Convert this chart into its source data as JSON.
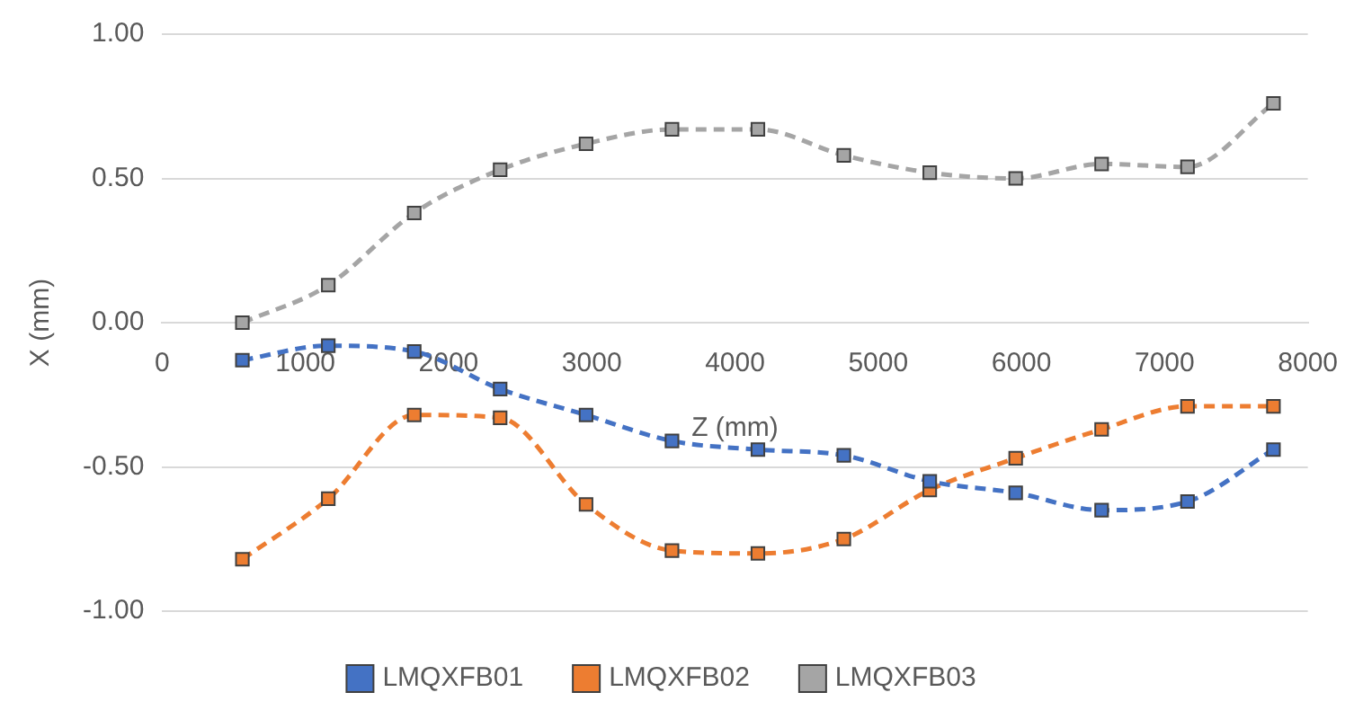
{
  "chart_data": {
    "type": "line",
    "xlabel": "Z (mm)",
    "ylabel": "X (mm)",
    "x": [
      560,
      1160,
      1760,
      2360,
      2960,
      3560,
      4160,
      4760,
      5360,
      5960,
      6560,
      7160,
      7760
    ],
    "series": [
      {
        "name": "LMQXFB01",
        "color": "#4472c4",
        "values": [
          -0.13,
          -0.08,
          -0.1,
          -0.23,
          -0.32,
          -0.41,
          -0.44,
          -0.46,
          -0.55,
          -0.59,
          -0.65,
          -0.62,
          -0.44
        ]
      },
      {
        "name": "LMQXFB02",
        "color": "#ed7d31",
        "values": [
          -0.82,
          -0.61,
          -0.32,
          -0.33,
          -0.63,
          -0.79,
          -0.8,
          -0.75,
          -0.58,
          -0.47,
          -0.37,
          -0.29,
          -0.29
        ]
      },
      {
        "name": "LMQXFB03",
        "color": "#a5a5a5",
        "values": [
          0.0,
          0.13,
          0.38,
          0.53,
          0.62,
          0.67,
          0.67,
          0.58,
          0.52,
          0.5,
          0.55,
          0.54,
          0.76
        ]
      }
    ],
    "xlim": [
      0,
      8000
    ],
    "xticks": [
      0,
      1000,
      2000,
      3000,
      4000,
      5000,
      6000,
      7000,
      8000
    ],
    "ylim": [
      -1,
      1
    ],
    "yticks": [
      {
        "value": -1,
        "label": "-1.00"
      },
      {
        "value": -0.5,
        "label": "-0.50"
      },
      {
        "value": 0,
        "label": "0.00"
      },
      {
        "value": 0.5,
        "label": "0.50"
      },
      {
        "value": 1,
        "label": "1.00"
      }
    ],
    "grid": "y",
    "legend": "bottom",
    "marker": "square",
    "line_style": "dashed"
  }
}
